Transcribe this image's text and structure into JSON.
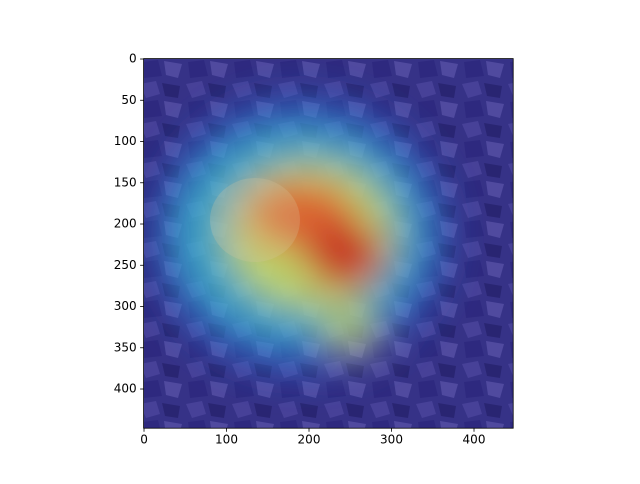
{
  "chart_data": {
    "type": "image",
    "xlim": [
      -0.5,
      447.5
    ],
    "ylim": [
      447.5,
      -0.5
    ],
    "xticks": [
      0,
      100,
      200,
      300,
      400
    ],
    "yticks": [
      0,
      50,
      100,
      150,
      200,
      250,
      300,
      350,
      400
    ]
  }
}
